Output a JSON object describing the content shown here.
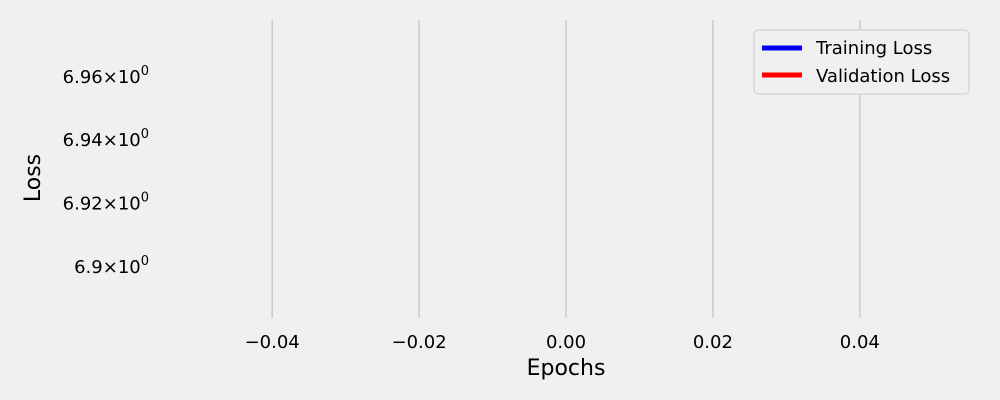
{
  "chart_data": {
    "type": "line",
    "title": "",
    "xlabel": "Epochs",
    "ylabel": "Loss",
    "xlim": [
      -0.055,
      0.055
    ],
    "ylim": [
      6.884,
      6.978
    ],
    "yscale": "log",
    "grid": "x-only",
    "legend_position": "top-right",
    "x_ticks": [
      {
        "value": -0.04,
        "label": "−0.04"
      },
      {
        "value": -0.02,
        "label": "−0.02"
      },
      {
        "value": 0.0,
        "label": "0.00"
      },
      {
        "value": 0.02,
        "label": "0.02"
      },
      {
        "value": 0.04,
        "label": "0.04"
      }
    ],
    "y_ticks": [
      {
        "value": 6.96,
        "mantissa": "6.96",
        "base": "10",
        "exp": "0"
      },
      {
        "value": 6.94,
        "mantissa": "6.94",
        "base": "10",
        "exp": "0"
      },
      {
        "value": 6.92,
        "mantissa": "6.92",
        "base": "10",
        "exp": "0"
      },
      {
        "value": 6.9,
        "mantissa": "6.9",
        "base": "10",
        "exp": "0"
      }
    ],
    "series": [
      {
        "name": "Training Loss",
        "color": "#0000ff",
        "x": [],
        "y": []
      },
      {
        "name": "Validation Loss",
        "color": "#ff0000",
        "x": [],
        "y": []
      }
    ],
    "colors": {
      "background": "#f0f0f0",
      "grid": "#cbcbcb",
      "legend_bg": "#f0f0f0",
      "legend_border": "#cccccc"
    }
  }
}
